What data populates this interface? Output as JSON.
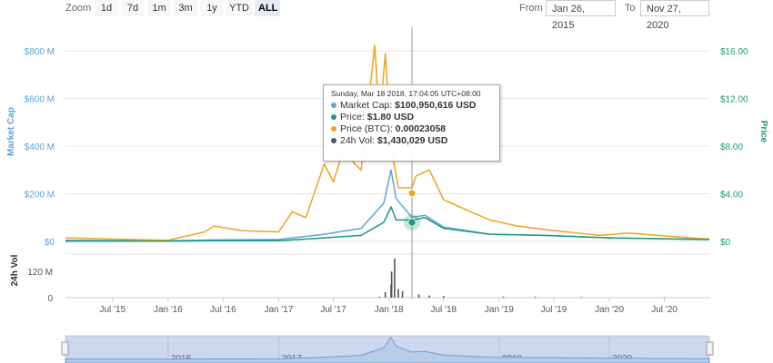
{
  "toolbar": {
    "zoom_label": "Zoom",
    "buttons": [
      "1d",
      "7d",
      "1m",
      "3m",
      "1y",
      "YTD",
      "ALL"
    ],
    "active": "ALL",
    "from_label": "From",
    "from_value": "Jan 26, 2015",
    "to_label": "To",
    "to_value": "Nov 27, 2020"
  },
  "tooltip": {
    "date": "Sunday, Mar 18 2018, 17:04:05 UTC+08:00",
    "rows": [
      {
        "label": "Market Cap:",
        "value": "$100,950,616 USD",
        "color": "#5ba5d9"
      },
      {
        "label": "Price:",
        "value": "$1.80 USD",
        "color": "#1a9b7c"
      },
      {
        "label": "Price (BTC):",
        "value": "0.00023058",
        "color": "#f2a21c"
      },
      {
        "label": "24h Vol:",
        "value": "$1,430,029 USD",
        "color": "#555555"
      }
    ]
  },
  "colors": {
    "market_cap": "#5ba5d9",
    "price": "#1a9b7c",
    "price_btc": "#f2a21c",
    "volume": "#555555",
    "navigator_fill": "#cdd8ee"
  },
  "chart_data": {
    "type": "line",
    "left_axis_label": "Market Cap",
    "right_axis_label": "Price",
    "volume_axis_label": "24h Vol",
    "left_ticks": [
      "$0",
      "$200 M",
      "$400 M",
      "$600 M",
      "$800 M"
    ],
    "right_ticks": [
      "$0",
      "$4.00",
      "$8.00",
      "$12.00",
      "$16.00"
    ],
    "volume_ticks": [
      "0",
      "120 M"
    ],
    "x_ticks": [
      "Jul '15",
      "Jan '16",
      "Jul '16",
      "Jan '17",
      "Jul '17",
      "Jan '18",
      "Jul '18",
      "Jan '19",
      "Jul '19",
      "Jan '20",
      "Jul '20"
    ],
    "navigator_ticks": [
      "2016",
      "2017",
      "2018",
      "2019",
      "2020"
    ],
    "x_range": [
      "2015-01-26",
      "2020-11-27"
    ],
    "left_range": [
      0,
      900
    ],
    "right_range": [
      0,
      18
    ],
    "series": [
      {
        "name": "Market Cap",
        "color": "#5ba5d9",
        "points": [
          [
            "2015-01-26",
            5
          ],
          [
            "2016-01-01",
            3
          ],
          [
            "2016-06-01",
            6
          ],
          [
            "2017-01-01",
            8
          ],
          [
            "2017-06-01",
            30
          ],
          [
            "2017-10-01",
            55
          ],
          [
            "2017-12-15",
            160
          ],
          [
            "2018-01-08",
            300
          ],
          [
            "2018-01-25",
            180
          ],
          [
            "2018-03-18",
            101
          ],
          [
            "2018-05-01",
            110
          ],
          [
            "2018-07-01",
            60
          ],
          [
            "2018-12-01",
            30
          ],
          [
            "2019-06-01",
            25
          ],
          [
            "2020-01-01",
            15
          ],
          [
            "2020-11-27",
            8
          ]
        ]
      },
      {
        "name": "Price",
        "color": "#1a9b7c",
        "points": [
          [
            "2015-01-26",
            0.02
          ],
          [
            "2016-01-01",
            0.02
          ],
          [
            "2016-06-01",
            0.05
          ],
          [
            "2017-01-01",
            0.06
          ],
          [
            "2017-06-01",
            0.3
          ],
          [
            "2017-10-01",
            0.5
          ],
          [
            "2017-12-15",
            1.6
          ],
          [
            "2018-01-08",
            2.9
          ],
          [
            "2018-01-25",
            1.8
          ],
          [
            "2018-03-18",
            1.8
          ],
          [
            "2018-05-01",
            2.0
          ],
          [
            "2018-07-01",
            1.1
          ],
          [
            "2018-12-01",
            0.6
          ],
          [
            "2019-06-01",
            0.5
          ],
          [
            "2020-01-01",
            0.3
          ],
          [
            "2020-11-27",
            0.15
          ]
        ]
      },
      {
        "name": "Price (BTC)",
        "color": "#f2a21c",
        "points": [
          [
            "2015-01-26",
            0.3
          ],
          [
            "2015-07-01",
            0.2
          ],
          [
            "2016-01-01",
            0.1
          ],
          [
            "2016-05-01",
            0.8
          ],
          [
            "2016-06-01",
            1.3
          ],
          [
            "2016-09-01",
            0.9
          ],
          [
            "2017-01-01",
            0.8
          ],
          [
            "2017-02-15",
            2.5
          ],
          [
            "2017-04-01",
            2.0
          ],
          [
            "2017-06-01",
            6.5
          ],
          [
            "2017-07-01",
            5.0
          ],
          [
            "2017-08-01",
            7.5
          ],
          [
            "2017-10-01",
            6.0
          ],
          [
            "2017-11-15",
            16.5
          ],
          [
            "2017-12-01",
            10.0
          ],
          [
            "2017-12-20",
            15.8
          ],
          [
            "2018-01-08",
            8.0
          ],
          [
            "2018-02-01",
            4.5
          ],
          [
            "2018-03-18",
            4.5
          ],
          [
            "2018-04-01",
            5.5
          ],
          [
            "2018-05-15",
            6.0
          ],
          [
            "2018-07-01",
            3.5
          ],
          [
            "2018-09-01",
            2.8
          ],
          [
            "2018-12-01",
            1.8
          ],
          [
            "2019-03-01",
            1.3
          ],
          [
            "2019-06-01",
            1.0
          ],
          [
            "2019-12-01",
            0.5
          ],
          [
            "2020-03-01",
            0.7
          ],
          [
            "2020-08-01",
            0.4
          ],
          [
            "2020-11-27",
            0.2
          ]
        ]
      },
      {
        "name": "24h Vol",
        "color": "#555555",
        "points": [
          [
            "2017-12-01",
            5
          ],
          [
            "2017-12-20",
            25
          ],
          [
            "2018-01-08",
            60
          ],
          [
            "2018-01-10",
            120
          ],
          [
            "2018-01-20",
            180
          ],
          [
            "2018-02-01",
            40
          ],
          [
            "2018-02-15",
            30
          ],
          [
            "2018-03-18",
            1.43
          ],
          [
            "2018-04-10",
            15
          ],
          [
            "2018-05-15",
            10
          ],
          [
            "2018-07-01",
            8
          ],
          [
            "2019-01-15",
            5
          ],
          [
            "2019-05-01",
            4
          ],
          [
            "2019-10-01",
            3
          ],
          [
            "2020-07-01",
            2
          ]
        ]
      }
    ]
  }
}
